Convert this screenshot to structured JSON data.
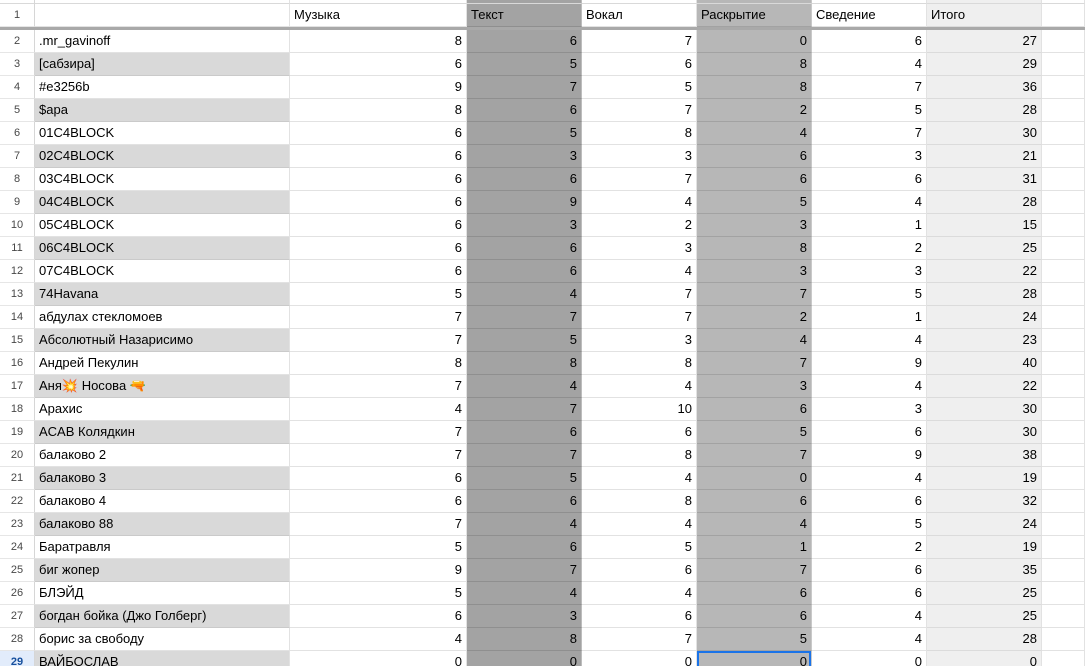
{
  "sheet": {
    "app_type": "spreadsheet",
    "header_row": {
      "row_num": "1",
      "name_cell": "",
      "columns": [
        "Музыка",
        "Текст",
        "Вокал",
        "Раскрытие",
        "Сведение",
        "Итого"
      ]
    },
    "rows": [
      {
        "num": 2,
        "name": ".mr_gavinoff",
        "scores": [
          8,
          6,
          7,
          0,
          6
        ],
        "total": 27
      },
      {
        "num": 3,
        "name": "[сабзира]",
        "scores": [
          6,
          5,
          6,
          8,
          4
        ],
        "total": 29
      },
      {
        "num": 4,
        "name": "#e3256b",
        "scores": [
          9,
          7,
          5,
          8,
          7
        ],
        "total": 36
      },
      {
        "num": 5,
        "name": "$apa",
        "scores": [
          8,
          6,
          7,
          2,
          5
        ],
        "total": 28
      },
      {
        "num": 6,
        "name": "01C4BLOCK",
        "scores": [
          6,
          5,
          8,
          4,
          7
        ],
        "total": 30
      },
      {
        "num": 7,
        "name": "02C4BLOCK",
        "scores": [
          6,
          3,
          3,
          6,
          3
        ],
        "total": 21
      },
      {
        "num": 8,
        "name": "03C4BLOCK",
        "scores": [
          6,
          6,
          7,
          6,
          6
        ],
        "total": 31
      },
      {
        "num": 9,
        "name": "04C4BLOCK",
        "scores": [
          6,
          9,
          4,
          5,
          4
        ],
        "total": 28
      },
      {
        "num": 10,
        "name": "05C4BLOCK",
        "scores": [
          6,
          3,
          2,
          3,
          1
        ],
        "total": 15
      },
      {
        "num": 11,
        "name": "06C4BLOCK",
        "scores": [
          6,
          6,
          3,
          8,
          2
        ],
        "total": 25
      },
      {
        "num": 12,
        "name": "07C4BLOCK",
        "scores": [
          6,
          6,
          4,
          3,
          3
        ],
        "total": 22
      },
      {
        "num": 13,
        "name": "74Havana",
        "scores": [
          5,
          4,
          7,
          7,
          5
        ],
        "total": 28
      },
      {
        "num": 14,
        "name": "абдулах стекломоев",
        "scores": [
          7,
          7,
          7,
          2,
          1
        ],
        "total": 24
      },
      {
        "num": 15,
        "name": "Абсолютный Назарисимо",
        "scores": [
          7,
          5,
          3,
          4,
          4
        ],
        "total": 23
      },
      {
        "num": 16,
        "name": "Андрей Пекулин",
        "scores": [
          8,
          8,
          8,
          7,
          9
        ],
        "total": 40
      },
      {
        "num": 17,
        "name": "Аня💥 Носова 🔫",
        "scores": [
          7,
          4,
          4,
          3,
          4
        ],
        "total": 22
      },
      {
        "num": 18,
        "name": "Арахис",
        "scores": [
          4,
          7,
          10,
          6,
          3
        ],
        "total": 30
      },
      {
        "num": 19,
        "name": "ACAB Колядкин",
        "scores": [
          7,
          6,
          6,
          5,
          6
        ],
        "total": 30
      },
      {
        "num": 20,
        "name": "балаково 2",
        "scores": [
          7,
          7,
          8,
          7,
          9
        ],
        "total": 38
      },
      {
        "num": 21,
        "name": "балаково 3",
        "scores": [
          6,
          5,
          4,
          0,
          4
        ],
        "total": 19
      },
      {
        "num": 22,
        "name": "балаково 4",
        "scores": [
          6,
          6,
          8,
          6,
          6
        ],
        "total": 32
      },
      {
        "num": 23,
        "name": "балаково 88",
        "scores": [
          7,
          4,
          4,
          4,
          5
        ],
        "total": 24
      },
      {
        "num": 24,
        "name": "Баратравля",
        "scores": [
          5,
          6,
          5,
          1,
          2
        ],
        "total": 19
      },
      {
        "num": 25,
        "name": "биг жопер",
        "scores": [
          9,
          7,
          6,
          7,
          6
        ],
        "total": 35
      },
      {
        "num": 26,
        "name": "БЛЭЙД",
        "scores": [
          5,
          4,
          4,
          6,
          6
        ],
        "total": 25
      },
      {
        "num": 27,
        "name": "богдан бойка (Джо Голберг)",
        "scores": [
          6,
          3,
          6,
          6,
          4
        ],
        "total": 25
      },
      {
        "num": 28,
        "name": "борис за свободу",
        "scores": [
          4,
          8,
          7,
          5,
          4
        ],
        "total": 28
      },
      {
        "num": 29,
        "name": "ВАЙБОСЛАВ",
        "scores": [
          0,
          0,
          0,
          0,
          0
        ],
        "total": 0
      }
    ],
    "active_cell": {
      "row_num": 29,
      "column_label": "Раскрытие",
      "column_index": 3
    },
    "colors": {
      "tekst_column_fill": "#a3a3a3",
      "raskrytie_column_fill": "#b7b7b7",
      "itogo_column_fill": "#efefef",
      "name_alt_row_fill": "#d9d9d9",
      "frozen_divider": "#a9a9a9",
      "active_cell_border": "#1a73e8"
    }
  }
}
